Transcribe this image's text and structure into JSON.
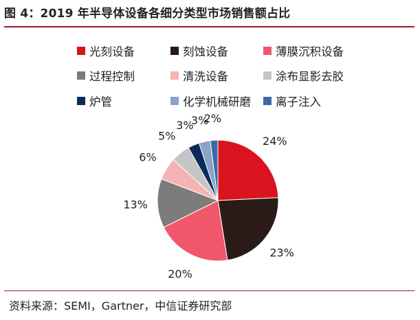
{
  "title": "图 4：2019 年半导体设备各细分类型市场销售额占比",
  "source": "资料来源：SEMI，Gartner，中信证券研究部",
  "chart_data": {
    "type": "pie",
    "title": "图 4：2019 年半导体设备各细分类型市场销售额占比",
    "legend_position": "top",
    "start_angle_deg": 0,
    "direction": "clockwise",
    "slices": [
      {
        "name": "光刻设备",
        "value": 24,
        "label": "24%",
        "color": "#d9141e"
      },
      {
        "name": "刻蚀设备",
        "value": 23,
        "label": "23%",
        "color": "#2a1a18"
      },
      {
        "name": "薄膜沉积设备",
        "value": 20,
        "label": "20%",
        "color": "#f0576a"
      },
      {
        "name": "过程控制",
        "value": 13,
        "label": "13%",
        "color": "#7c7c7c"
      },
      {
        "name": "清洗设备",
        "value": 6,
        "label": "6%",
        "color": "#f6b3b3"
      },
      {
        "name": "涂布显影去胶",
        "value": 5,
        "label": "5%",
        "color": "#c5c5c5"
      },
      {
        "name": "炉管",
        "value": 3,
        "label": "3%",
        "color": "#0b2a5c"
      },
      {
        "name": "化学机械研磨",
        "value": 3,
        "label": "3%",
        "color": "#8aa3c6"
      },
      {
        "name": "离子注入",
        "value": 2,
        "label": "2%",
        "color": "#3d6aa6"
      }
    ]
  }
}
